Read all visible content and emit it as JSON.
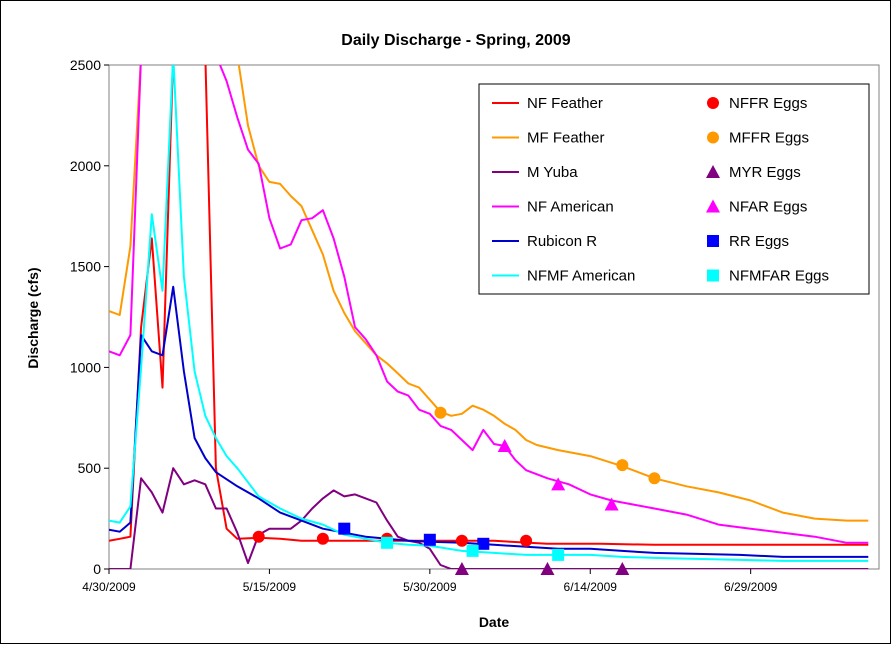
{
  "chart_data": {
    "type": "line",
    "title": "Daily Discharge - Spring, 2009",
    "xlabel": "Date",
    "ylabel": "Discharge (cfs)",
    "xlim": [
      "2009-04-30",
      "2009-07-11"
    ],
    "ylim": [
      0,
      2500
    ],
    "x_ticks": [
      "4/30/2009",
      "5/15/2009",
      "5/30/2009",
      "6/14/2009",
      "6/29/2009"
    ],
    "y_ticks": [
      "0",
      "500",
      "1000",
      "1500",
      "2000",
      "2500"
    ],
    "grid": false,
    "legend_position": "top-right",
    "series": [
      {
        "name": "NF Feather",
        "color": "#ff0000",
        "kind": "line",
        "points": [
          [
            "2009-04-30",
            140
          ],
          [
            "2009-05-01",
            150
          ],
          [
            "2009-05-02",
            160
          ],
          [
            "2009-05-03",
            1200
          ],
          [
            "2009-05-04",
            1640
          ],
          [
            "2009-05-05",
            900
          ],
          [
            "2009-05-06",
            2550
          ],
          [
            "2009-05-07",
            2550
          ],
          [
            "2009-05-08",
            2550
          ],
          [
            "2009-05-09",
            2550
          ],
          [
            "2009-05-10",
            500
          ],
          [
            "2009-05-11",
            200
          ],
          [
            "2009-05-12",
            150
          ],
          [
            "2009-05-14",
            155
          ],
          [
            "2009-05-16",
            150
          ],
          [
            "2009-05-18",
            140
          ],
          [
            "2009-05-20",
            140
          ],
          [
            "2009-05-25",
            140
          ],
          [
            "2009-05-30",
            140
          ],
          [
            "2009-06-05",
            140
          ],
          [
            "2009-06-10",
            125
          ],
          [
            "2009-06-15",
            125
          ],
          [
            "2009-06-20",
            120
          ],
          [
            "2009-06-25",
            120
          ],
          [
            "2009-06-30",
            120
          ],
          [
            "2009-07-05",
            120
          ],
          [
            "2009-07-10",
            120
          ]
        ]
      },
      {
        "name": "MF Feather",
        "color": "#ff9900",
        "kind": "line",
        "points": [
          [
            "2009-04-30",
            1280
          ],
          [
            "2009-05-01",
            1260
          ],
          [
            "2009-05-02",
            1600
          ],
          [
            "2009-05-03",
            2550
          ],
          [
            "2009-05-12",
            2550
          ],
          [
            "2009-05-13",
            2200
          ],
          [
            "2009-05-14",
            2000
          ],
          [
            "2009-05-15",
            1920
          ],
          [
            "2009-05-16",
            1910
          ],
          [
            "2009-05-17",
            1850
          ],
          [
            "2009-05-18",
            1800
          ],
          [
            "2009-05-19",
            1680
          ],
          [
            "2009-05-20",
            1560
          ],
          [
            "2009-05-21",
            1380
          ],
          [
            "2009-05-22",
            1270
          ],
          [
            "2009-05-23",
            1180
          ],
          [
            "2009-05-24",
            1120
          ],
          [
            "2009-05-25",
            1060
          ],
          [
            "2009-05-26",
            1020
          ],
          [
            "2009-05-27",
            970
          ],
          [
            "2009-05-28",
            920
          ],
          [
            "2009-05-29",
            900
          ],
          [
            "2009-05-30",
            840
          ],
          [
            "2009-05-31",
            780
          ],
          [
            "2009-06-01",
            760
          ],
          [
            "2009-06-02",
            770
          ],
          [
            "2009-06-03",
            810
          ],
          [
            "2009-06-04",
            790
          ],
          [
            "2009-06-05",
            760
          ],
          [
            "2009-06-06",
            720
          ],
          [
            "2009-06-07",
            690
          ],
          [
            "2009-06-08",
            640
          ],
          [
            "2009-06-09",
            615
          ],
          [
            "2009-06-11",
            590
          ],
          [
            "2009-06-14",
            560
          ],
          [
            "2009-06-17",
            510
          ],
          [
            "2009-06-20",
            450
          ],
          [
            "2009-06-23",
            410
          ],
          [
            "2009-06-26",
            380
          ],
          [
            "2009-06-29",
            340
          ],
          [
            "2009-07-02",
            280
          ],
          [
            "2009-07-05",
            250
          ],
          [
            "2009-07-08",
            240
          ],
          [
            "2009-07-10",
            240
          ]
        ]
      },
      {
        "name": "M Yuba",
        "color": "#800080",
        "kind": "line",
        "points": [
          [
            "2009-04-30",
            0
          ],
          [
            "2009-05-01",
            0
          ],
          [
            "2009-05-02",
            0
          ],
          [
            "2009-05-03",
            450
          ],
          [
            "2009-05-04",
            380
          ],
          [
            "2009-05-05",
            280
          ],
          [
            "2009-05-06",
            500
          ],
          [
            "2009-05-07",
            420
          ],
          [
            "2009-05-08",
            440
          ],
          [
            "2009-05-09",
            420
          ],
          [
            "2009-05-10",
            300
          ],
          [
            "2009-05-11",
            300
          ],
          [
            "2009-05-12",
            180
          ],
          [
            "2009-05-13",
            30
          ],
          [
            "2009-05-14",
            170
          ],
          [
            "2009-05-15",
            200
          ],
          [
            "2009-05-16",
            200
          ],
          [
            "2009-05-17",
            200
          ],
          [
            "2009-05-18",
            240
          ],
          [
            "2009-05-19",
            300
          ],
          [
            "2009-05-20",
            350
          ],
          [
            "2009-05-21",
            390
          ],
          [
            "2009-05-22",
            360
          ],
          [
            "2009-05-23",
            370
          ],
          [
            "2009-05-24",
            350
          ],
          [
            "2009-05-25",
            330
          ],
          [
            "2009-05-26",
            240
          ],
          [
            "2009-05-27",
            160
          ],
          [
            "2009-05-28",
            140
          ],
          [
            "2009-05-29",
            130
          ],
          [
            "2009-05-30",
            100
          ],
          [
            "2009-05-31",
            20
          ],
          [
            "2009-06-01",
            0
          ],
          [
            "2009-06-05",
            0
          ],
          [
            "2009-06-10",
            0
          ],
          [
            "2009-06-15",
            0
          ],
          [
            "2009-06-20",
            0
          ],
          [
            "2009-06-25",
            0
          ],
          [
            "2009-06-30",
            0
          ],
          [
            "2009-07-05",
            0
          ],
          [
            "2009-07-10",
            0
          ]
        ]
      },
      {
        "name": "NF American",
        "color": "#ff00ff",
        "kind": "line",
        "points": [
          [
            "2009-04-30",
            1080
          ],
          [
            "2009-05-01",
            1060
          ],
          [
            "2009-05-02",
            1160
          ],
          [
            "2009-05-03",
            2550
          ],
          [
            "2009-05-10",
            2550
          ],
          [
            "2009-05-11",
            2420
          ],
          [
            "2009-05-12",
            2240
          ],
          [
            "2009-05-13",
            2080
          ],
          [
            "2009-05-14",
            2010
          ],
          [
            "2009-05-15",
            1740
          ],
          [
            "2009-05-16",
            1590
          ],
          [
            "2009-05-17",
            1610
          ],
          [
            "2009-05-18",
            1730
          ],
          [
            "2009-05-19",
            1740
          ],
          [
            "2009-05-20",
            1780
          ],
          [
            "2009-05-21",
            1640
          ],
          [
            "2009-05-22",
            1450
          ],
          [
            "2009-05-23",
            1200
          ],
          [
            "2009-05-24",
            1140
          ],
          [
            "2009-05-25",
            1060
          ],
          [
            "2009-05-26",
            930
          ],
          [
            "2009-05-27",
            880
          ],
          [
            "2009-05-28",
            860
          ],
          [
            "2009-05-29",
            790
          ],
          [
            "2009-05-30",
            770
          ],
          [
            "2009-05-31",
            710
          ],
          [
            "2009-06-01",
            690
          ],
          [
            "2009-06-02",
            640
          ],
          [
            "2009-06-03",
            590
          ],
          [
            "2009-06-04",
            690
          ],
          [
            "2009-06-05",
            620
          ],
          [
            "2009-06-06",
            610
          ],
          [
            "2009-06-07",
            540
          ],
          [
            "2009-06-08",
            490
          ],
          [
            "2009-06-10",
            450
          ],
          [
            "2009-06-12",
            420
          ],
          [
            "2009-06-14",
            370
          ],
          [
            "2009-06-16",
            340
          ],
          [
            "2009-06-18",
            320
          ],
          [
            "2009-06-20",
            300
          ],
          [
            "2009-06-23",
            270
          ],
          [
            "2009-06-26",
            220
          ],
          [
            "2009-06-29",
            200
          ],
          [
            "2009-07-02",
            180
          ],
          [
            "2009-07-05",
            160
          ],
          [
            "2009-07-08",
            130
          ],
          [
            "2009-07-10",
            130
          ]
        ]
      },
      {
        "name": "Rubicon R",
        "color": "#0000cc",
        "kind": "line",
        "points": [
          [
            "2009-04-30",
            195
          ],
          [
            "2009-05-01",
            185
          ],
          [
            "2009-05-02",
            230
          ],
          [
            "2009-05-03",
            1160
          ],
          [
            "2009-05-04",
            1080
          ],
          [
            "2009-05-05",
            1060
          ],
          [
            "2009-05-06",
            1400
          ],
          [
            "2009-05-07",
            980
          ],
          [
            "2009-05-08",
            650
          ],
          [
            "2009-05-09",
            550
          ],
          [
            "2009-05-10",
            480
          ],
          [
            "2009-05-12",
            410
          ],
          [
            "2009-05-14",
            350
          ],
          [
            "2009-05-16",
            280
          ],
          [
            "2009-05-18",
            240
          ],
          [
            "2009-05-20",
            200
          ],
          [
            "2009-05-22",
            180
          ],
          [
            "2009-05-24",
            160
          ],
          [
            "2009-05-26",
            150
          ],
          [
            "2009-05-28",
            140
          ],
          [
            "2009-05-30",
            135
          ],
          [
            "2009-06-02",
            130
          ],
          [
            "2009-06-05",
            120
          ],
          [
            "2009-06-08",
            110
          ],
          [
            "2009-06-11",
            100
          ],
          [
            "2009-06-14",
            100
          ],
          [
            "2009-06-17",
            90
          ],
          [
            "2009-06-20",
            80
          ],
          [
            "2009-06-24",
            75
          ],
          [
            "2009-06-28",
            70
          ],
          [
            "2009-07-02",
            60
          ],
          [
            "2009-07-06",
            60
          ],
          [
            "2009-07-10",
            60
          ]
        ]
      },
      {
        "name": "NFMF American",
        "color": "#00ffff",
        "kind": "line",
        "points": [
          [
            "2009-04-30",
            240
          ],
          [
            "2009-05-01",
            230
          ],
          [
            "2009-05-02",
            310
          ],
          [
            "2009-05-03",
            1000
          ],
          [
            "2009-05-04",
            1760
          ],
          [
            "2009-05-05",
            1380
          ],
          [
            "2009-05-06",
            2550
          ],
          [
            "2009-05-07",
            1450
          ],
          [
            "2009-05-08",
            980
          ],
          [
            "2009-05-09",
            760
          ],
          [
            "2009-05-10",
            650
          ],
          [
            "2009-05-11",
            560
          ],
          [
            "2009-05-12",
            500
          ],
          [
            "2009-05-14",
            360
          ],
          [
            "2009-05-16",
            300
          ],
          [
            "2009-05-18",
            250
          ],
          [
            "2009-05-20",
            220
          ],
          [
            "2009-05-22",
            170
          ],
          [
            "2009-05-24",
            150
          ],
          [
            "2009-05-26",
            130
          ],
          [
            "2009-05-28",
            120
          ],
          [
            "2009-05-30",
            115
          ],
          [
            "2009-06-02",
            90
          ],
          [
            "2009-06-05",
            80
          ],
          [
            "2009-06-08",
            70
          ],
          [
            "2009-06-11",
            70
          ],
          [
            "2009-06-14",
            70
          ],
          [
            "2009-06-17",
            60
          ],
          [
            "2009-06-20",
            55
          ],
          [
            "2009-06-24",
            50
          ],
          [
            "2009-06-28",
            45
          ],
          [
            "2009-07-02",
            40
          ],
          [
            "2009-07-06",
            40
          ],
          [
            "2009-07-10",
            40
          ]
        ]
      },
      {
        "name": "NFFR Eggs",
        "color": "#ff0000",
        "kind": "marker",
        "marker": "circle",
        "points": [
          [
            "2009-05-14",
            160
          ],
          [
            "2009-05-20",
            150
          ],
          [
            "2009-05-26",
            150
          ],
          [
            "2009-06-02",
            140
          ],
          [
            "2009-06-08",
            140
          ]
        ]
      },
      {
        "name": "MFFR Eggs",
        "color": "#ff9900",
        "kind": "marker",
        "marker": "circle",
        "points": [
          [
            "2009-05-31",
            775
          ],
          [
            "2009-06-17",
            515
          ],
          [
            "2009-06-20",
            450
          ]
        ]
      },
      {
        "name": "MYR Eggs",
        "color": "#800080",
        "kind": "marker",
        "marker": "triangle",
        "points": [
          [
            "2009-06-02",
            0
          ],
          [
            "2009-06-10",
            0
          ],
          [
            "2009-06-17",
            0
          ]
        ]
      },
      {
        "name": "NFAR Eggs",
        "color": "#ff00ff",
        "kind": "marker",
        "marker": "triangle",
        "points": [
          [
            "2009-06-06",
            610
          ],
          [
            "2009-06-11",
            420
          ],
          [
            "2009-06-16",
            320
          ]
        ]
      },
      {
        "name": "RR Eggs",
        "color": "#0000ff",
        "kind": "marker",
        "marker": "square",
        "points": [
          [
            "2009-05-22",
            200
          ],
          [
            "2009-05-30",
            145
          ],
          [
            "2009-06-04",
            125
          ]
        ]
      },
      {
        "name": "NFMFAR Eggs",
        "color": "#00ffff",
        "kind": "marker",
        "marker": "square",
        "points": [
          [
            "2009-05-26",
            130
          ],
          [
            "2009-06-03",
            90
          ],
          [
            "2009-06-11",
            70
          ]
        ]
      }
    ]
  }
}
